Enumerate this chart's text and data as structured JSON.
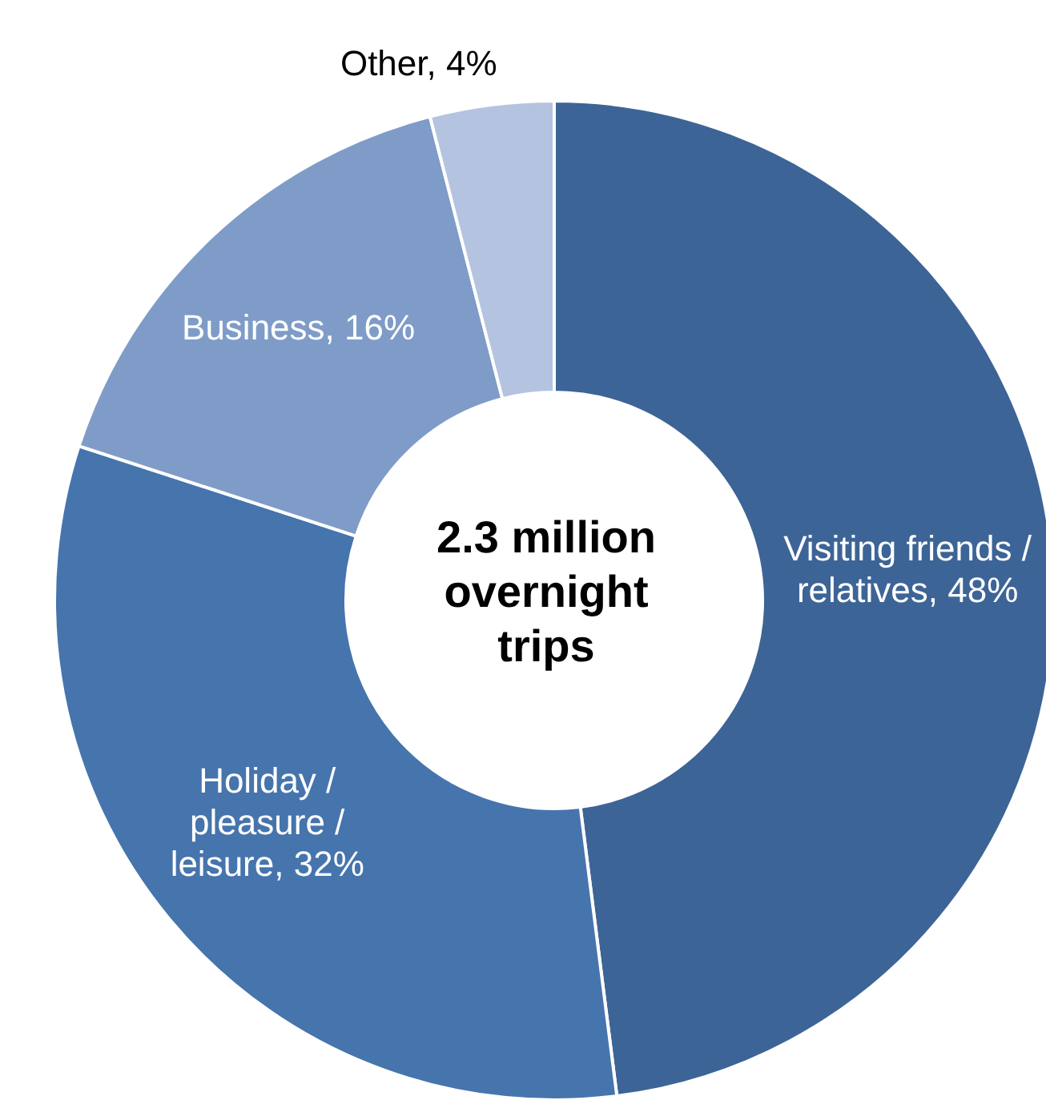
{
  "chart_data": {
    "type": "donut",
    "categories": [
      "Visiting friends / relatives",
      "Holiday / pleasure / leisure",
      "Business",
      "Other"
    ],
    "values": [
      48,
      32,
      16,
      4
    ],
    "value_labels": [
      "48%",
      "32%",
      "16%",
      "4%"
    ],
    "colors": [
      "#3d6496",
      "#4674ad",
      "#7f9cc8",
      "#b4c3df"
    ],
    "annotations": [
      "2.3 million overnight trips"
    ],
    "legend": false
  }
}
